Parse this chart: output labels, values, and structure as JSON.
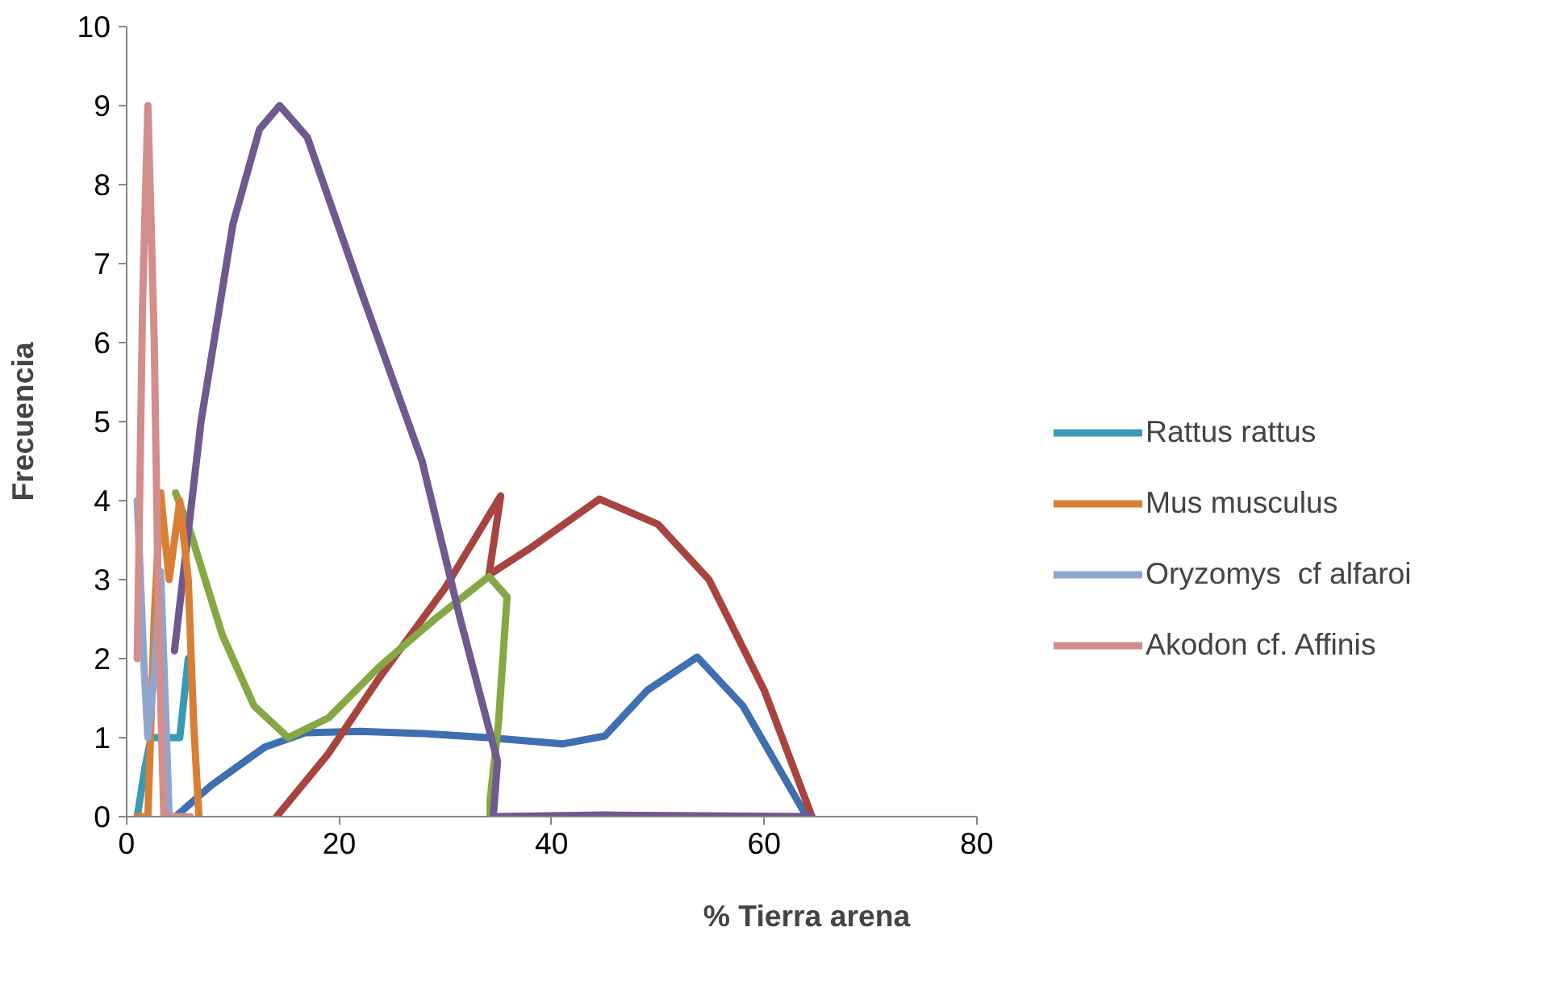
{
  "chart_data": {
    "type": "line",
    "xlabel": "% Tierra arena",
    "ylabel": "Frecuencia",
    "xlim": [
      0,
      80
    ],
    "xticks": [
      0,
      20,
      40,
      60,
      80
    ],
    "ylim": [
      0,
      10
    ],
    "yticks": [
      0,
      1,
      2,
      3,
      4,
      5,
      6,
      7,
      8,
      9,
      10
    ],
    "grid": false,
    "legend": "right",
    "marker": "none",
    "line_style": "solid",
    "series": [
      {
        "color": "#3f6fb0",
        "x": [
          4.6,
          8,
          13,
          16.8,
          22,
          28,
          34,
          41,
          45,
          49,
          53.7,
          58,
          64
        ],
        "values": [
          0,
          0.4,
          0.88,
          1.06,
          1.08,
          1.05,
          1.0,
          0.92,
          1.02,
          1.6,
          2.02,
          1.4,
          0
        ]
      },
      {
        "color": "#a84440",
        "x": [
          14.1,
          19,
          23.8,
          30,
          35.2,
          34.1,
          38,
          44.5,
          50,
          54.8,
          60,
          64.5
        ],
        "values": [
          0,
          0.8,
          1.76,
          2.9,
          4.06,
          3.06,
          3.4,
          4.02,
          3.7,
          3.0,
          1.6,
          0
        ]
      },
      {
        "color": "#86a844",
        "x": [
          4.6,
          6,
          9,
          12,
          15.2,
          19,
          23.8,
          29,
          34.1,
          35.8,
          35,
          34.2,
          34.2
        ],
        "values": [
          4.1,
          3.6,
          2.3,
          1.4,
          1.0,
          1.25,
          1.9,
          2.5,
          3.04,
          2.78,
          1.2,
          0.2,
          0
        ]
      },
      {
        "color": "#71588f",
        "x": [
          4.5,
          7,
          10,
          12.5,
          14.4,
          17,
          22.2,
          27.8,
          31.4,
          34.9,
          34.5,
          45,
          64.5
        ],
        "values": [
          2.1,
          5.0,
          7.5,
          8.7,
          9.0,
          8.6,
          6.6,
          4.5,
          2.5,
          0.7,
          0,
          0.02,
          0
        ]
      },
      {
        "name": "Rattus rattus",
        "color": "#3a9ab5",
        "x": [
          1,
          1.7,
          2.3,
          3,
          4,
          5,
          5.8
        ],
        "values": [
          0,
          0.6,
          1.0,
          1.0,
          1.0,
          1.0,
          2.0
        ]
      },
      {
        "name": "Mus musculus",
        "color": "#d97f35",
        "x": [
          1,
          2,
          2.6,
          3.2,
          4,
          5,
          5.8,
          6.3,
          6.8
        ],
        "values": [
          0,
          0,
          2.5,
          4.1,
          3.0,
          4.0,
          3.0,
          1.2,
          0
        ]
      },
      {
        "name": "Oryzomys  cf alfaroi",
        "color": "#8ea6cf",
        "x": [
          1,
          1.6,
          2,
          2.6,
          3.2,
          3.7,
          4
        ],
        "values": [
          4.0,
          2.0,
          1.0,
          1.8,
          3.1,
          1.2,
          0
        ]
      },
      {
        "name": "Akodon cf. Affinis",
        "color": "#d28e8c",
        "x": [
          1,
          1.5,
          2,
          2.6,
          3,
          3.5,
          4,
          6
        ],
        "values": [
          2.0,
          6.5,
          9.0,
          6.0,
          2.5,
          0,
          0,
          0
        ]
      }
    ]
  }
}
